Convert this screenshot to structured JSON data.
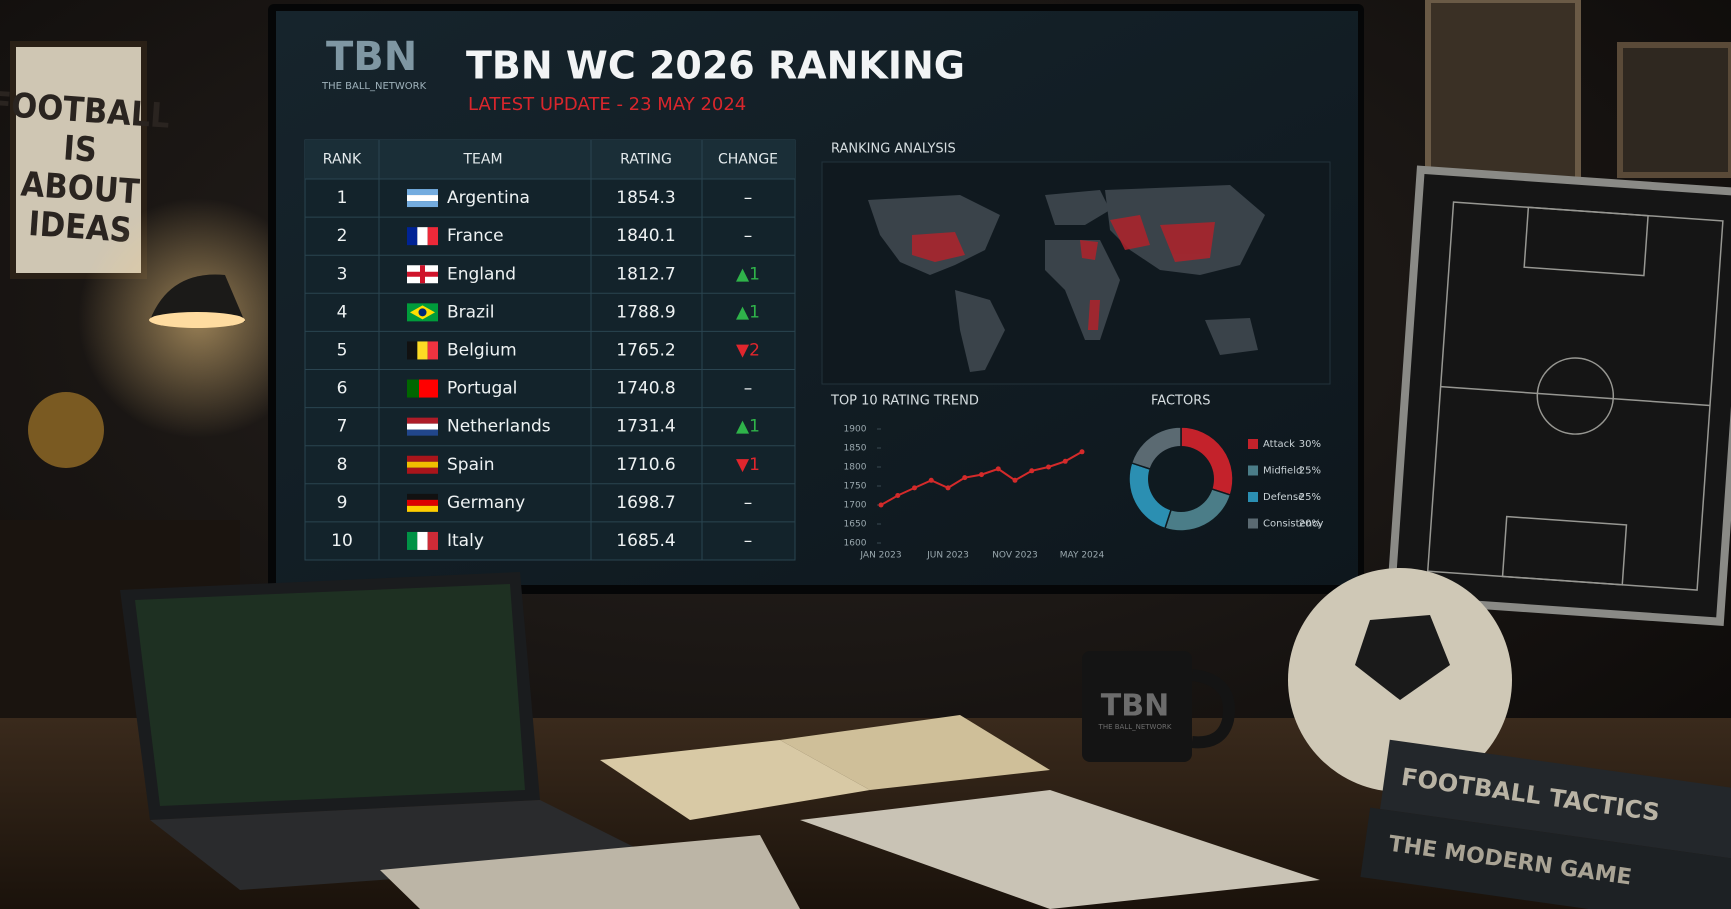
{
  "header": {
    "logo": "TBN",
    "logo_tagline": "THE BALL_NETWORK",
    "title": "TBN WC 2026 RANKING",
    "subtitle": "LATEST UPDATE - 23 MAY 2024"
  },
  "table": {
    "columns": [
      "RANK",
      "TEAM",
      "RATING",
      "CHANGE"
    ],
    "rows": [
      [
        1,
        "Argentina",
        1854.3,
        "–"
      ],
      [
        2,
        "France",
        1840.1,
        "–"
      ],
      [
        3,
        "England",
        1812.7,
        "▲1"
      ],
      [
        4,
        "Brazil",
        1788.9,
        "▲1"
      ],
      [
        5,
        "Belgium",
        1765.2,
        "▼2"
      ],
      [
        6,
        "Portugal",
        1740.8,
        "–"
      ],
      [
        7,
        "Netherlands",
        1731.4,
        "▲1"
      ],
      [
        8,
        "Spain",
        1710.6,
        "▼1"
      ],
      [
        9,
        "Germany",
        1698.7,
        "–"
      ],
      [
        10,
        "Italy",
        1685.4,
        "–"
      ]
    ]
  },
  "map_panel": {
    "title": "RANKING ANALYSIS"
  },
  "chart_data": [
    {
      "type": "line",
      "title": "TOP 10 RATING TREND",
      "categories": [
        "JAN 2023",
        null,
        null,
        null,
        "JUN 2023",
        null,
        null,
        null,
        "NOV 2023",
        null,
        null,
        null,
        "MAY 2024"
      ],
      "series": [
        {
          "name": "Top 10",
          "color": "#d42a2a",
          "values": [
            1700,
            1725,
            1745,
            1765,
            1745,
            1772,
            1780,
            1795,
            1765,
            1790,
            1800,
            1815,
            1840
          ]
        }
      ],
      "ylim": [
        1600,
        1900
      ],
      "yticks": [
        1600,
        1650,
        1700,
        1750,
        1800,
        1850,
        1900
      ]
    },
    {
      "type": "donut",
      "title": "FACTORS",
      "categories": [
        "Attack",
        "Midfield",
        "Defense",
        "Consistency"
      ],
      "values": [
        30,
        25,
        25,
        20
      ],
      "value_labels": [
        "30%",
        "25%",
        "25%",
        "20%"
      ],
      "colors": [
        "#c4222b",
        "#4b7d88",
        "#2b8fb2",
        "#5b6a72"
      ]
    }
  ],
  "scene": {
    "poster": [
      "FOOTBALL",
      "IS",
      "ABOUT",
      "IDEAS"
    ],
    "mug": [
      "TBN",
      "THE BALL_NETWORK"
    ],
    "books": [
      "FOOTBALL TACTICS",
      "THE MODERN GAME"
    ]
  }
}
